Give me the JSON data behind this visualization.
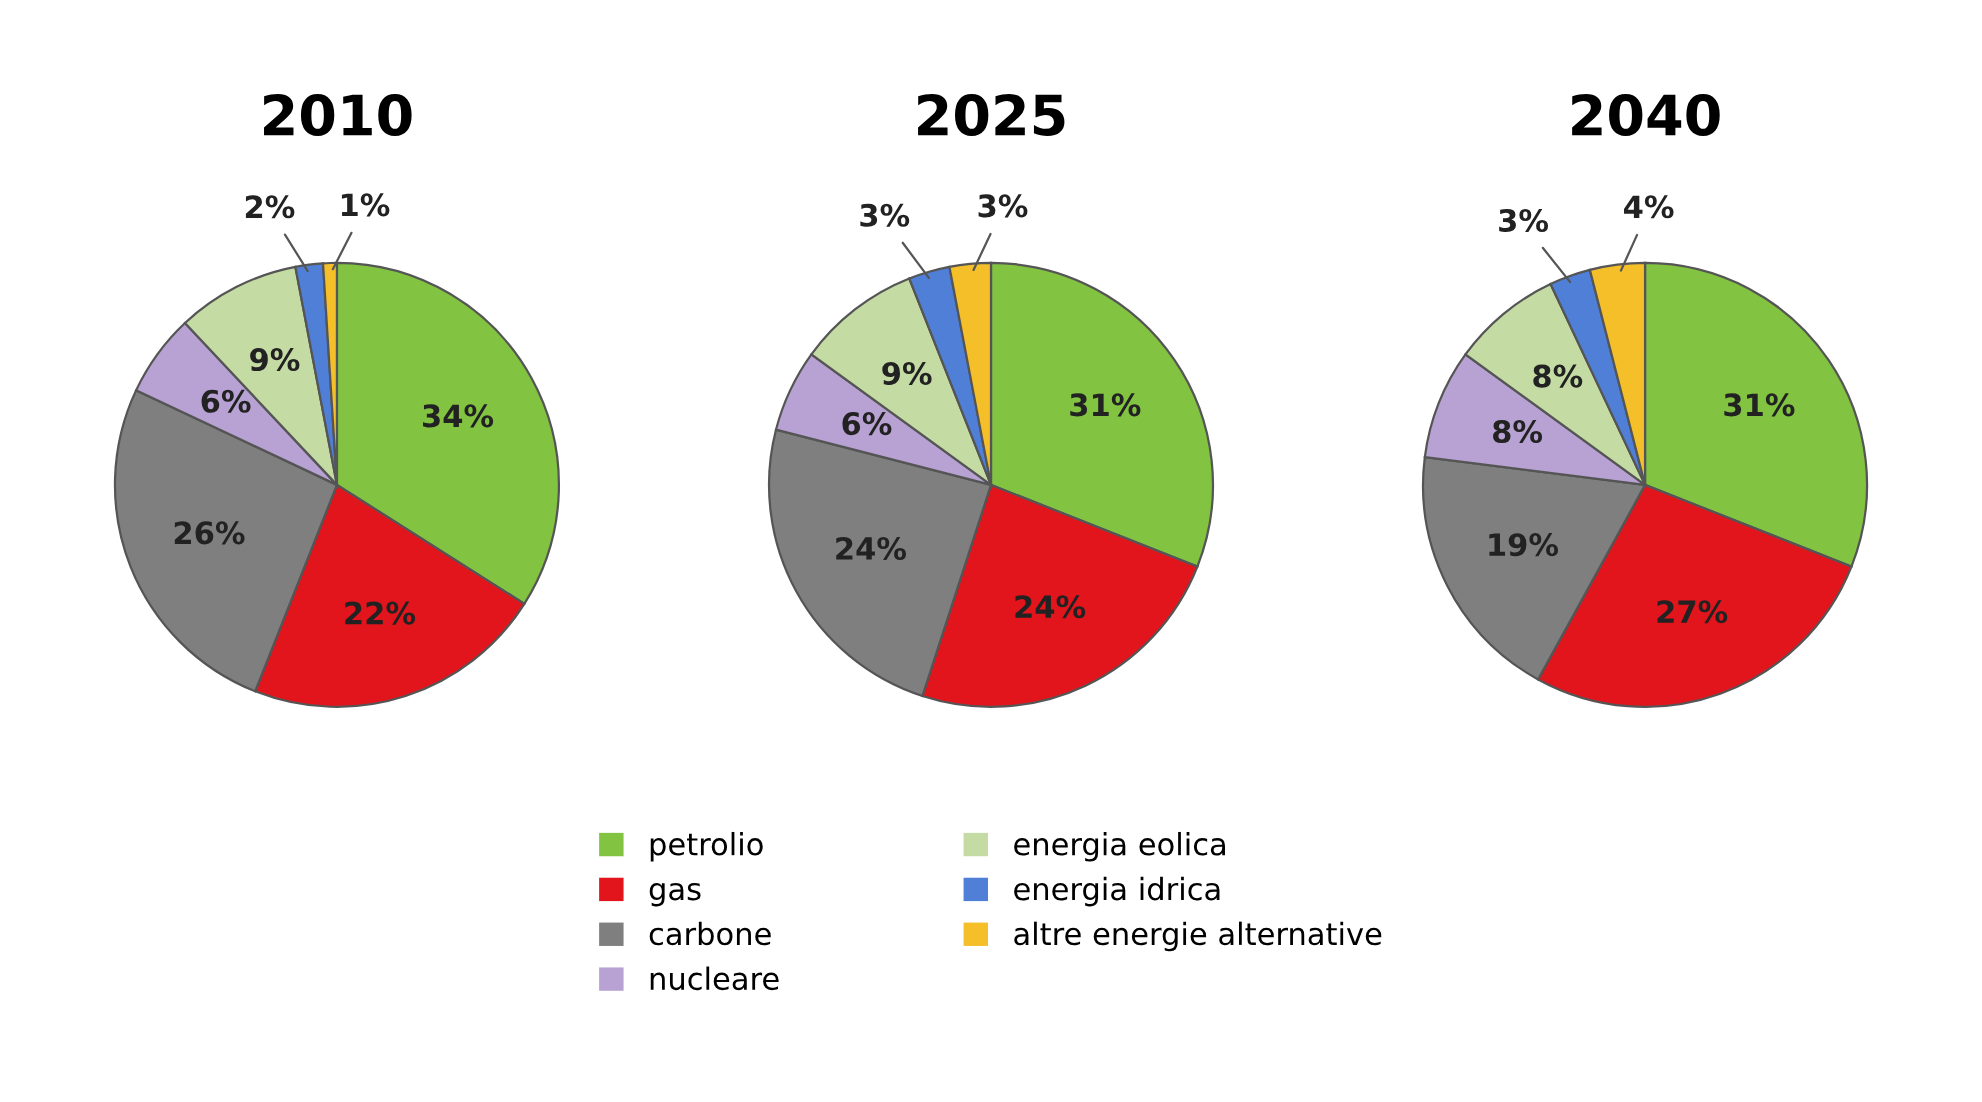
{
  "chart_data": [
    {
      "type": "pie",
      "title": "2010",
      "categories": [
        "petrolio",
        "gas",
        "carbone",
        "nucleare",
        "energia eolica",
        "energia idrica",
        "altre energie alternative"
      ],
      "values": [
        34,
        22,
        26,
        6,
        9,
        2,
        1
      ],
      "value_labels": [
        "34%",
        "22%",
        "26%",
        "6%",
        "9%",
        "2%",
        "1%"
      ],
      "colors": [
        "#82c341",
        "#e3151c",
        "#7f7f7f",
        "#b7a2d3",
        "#c4dca4",
        "#4f7fd6",
        "#f5bf2a"
      ],
      "legend": "bottom"
    },
    {
      "type": "pie",
      "title": "2025",
      "values": [
        31,
        24,
        24,
        6,
        9,
        3,
        3
      ],
      "value_labels": [
        "31%",
        "24%",
        "24%",
        "6%",
        "9%",
        "3%",
        "3%"
      ],
      "colors": [
        "#82c341",
        "#e3151c",
        "#7f7f7f",
        "#b7a2d3",
        "#c4dca4",
        "#4f7fd6",
        "#f5bf2a"
      ]
    },
    {
      "type": "pie",
      "title": "2040",
      "values": [
        31,
        27,
        19,
        8,
        8,
        3,
        4
      ],
      "value_labels": [
        "31%",
        "27%",
        "19%",
        "8%",
        "8%",
        "3%",
        "4%"
      ],
      "colors": [
        "#82c341",
        "#e3151c",
        "#7f7f7f",
        "#b7a2d3",
        "#c4dca4",
        "#4f7fd6",
        "#f5bf2a"
      ]
    }
  ]
}
